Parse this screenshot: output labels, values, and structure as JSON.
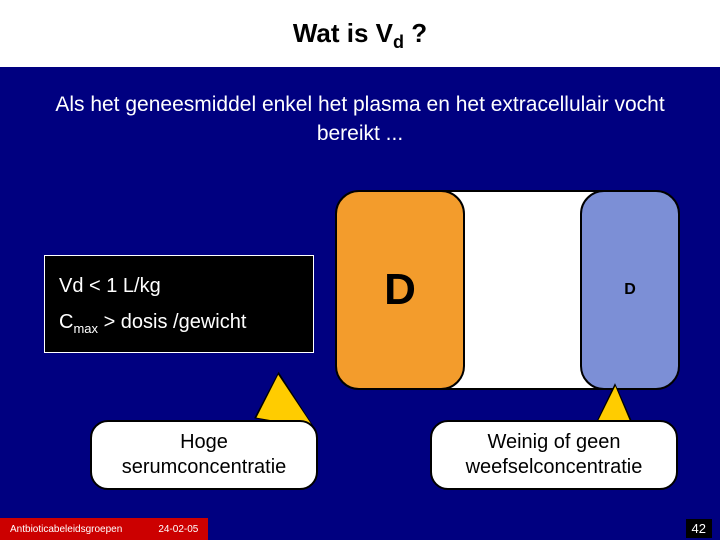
{
  "title_prefix": "Wat is V",
  "title_sub": "d",
  "title_suffix": " ?",
  "subtitle": "Als het geneesmiddel enkel het plasma en het extracellulair vocht bereikt ...",
  "textbox": {
    "line1": "Vd  < 1 L/kg",
    "line2_prefix": "C",
    "line2_sub": "max",
    "line2_suffix": " > dosis /gewicht"
  },
  "diagram": {
    "outer_bg": "#ffffff",
    "orange_bg": "#f39c2c",
    "blue_bg": "#7c8fd6",
    "big_label": "D",
    "small_label": "D"
  },
  "callouts": {
    "left": "Hoge serumconcentratie",
    "right": "Weinig of geen weefselconcentratie",
    "pointer_fill": "#ffcc00"
  },
  "footer": {
    "group": "Antbioticabeleidsgroepen",
    "date": "24-02-05",
    "slide": "42"
  },
  "colors": {
    "page_bg": "#000080",
    "title_bg": "#ffffff",
    "footer_bg": "#cc0000"
  }
}
